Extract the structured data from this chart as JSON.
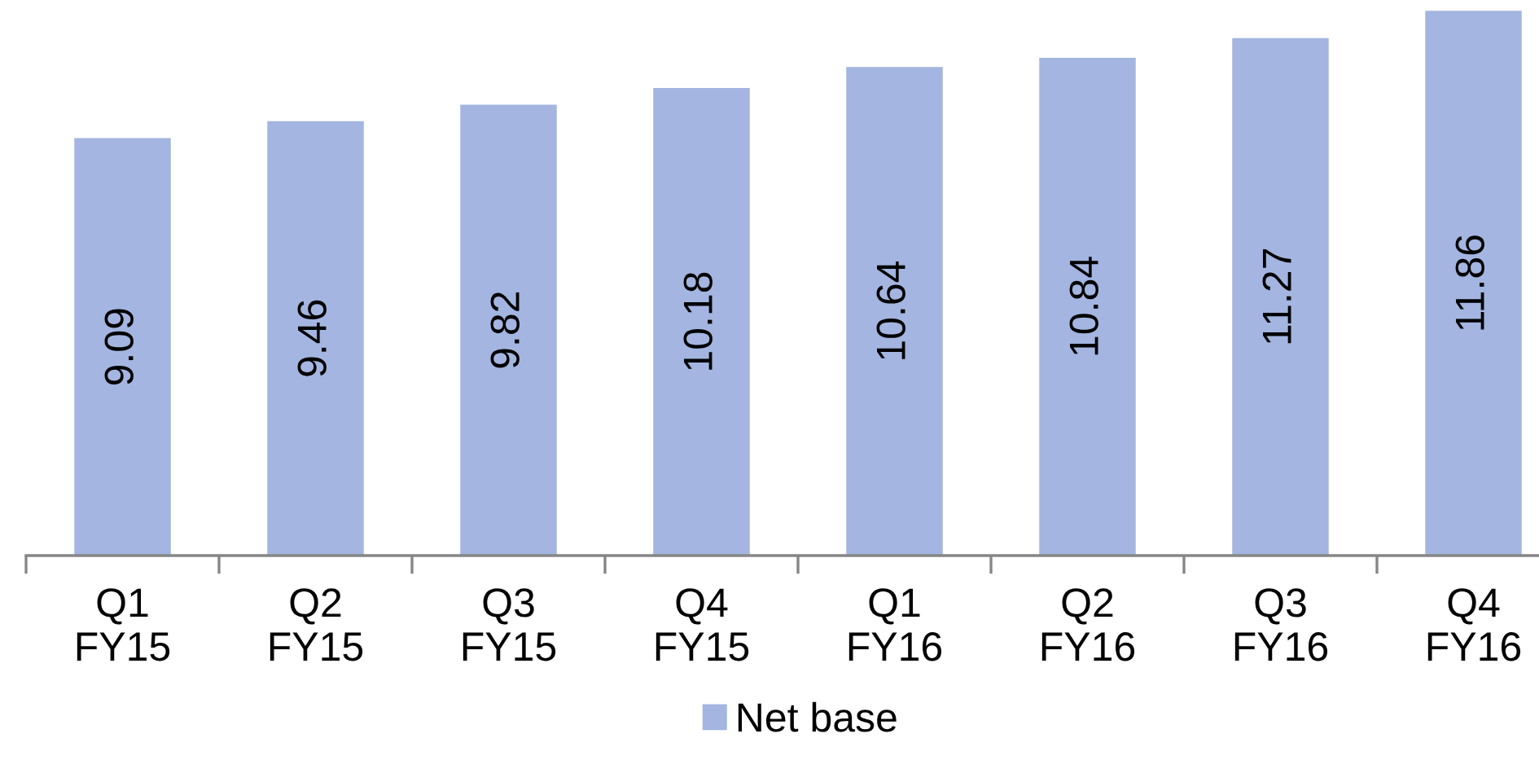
{
  "chart_data": {
    "type": "bar",
    "categories": [
      "Q1\nFY15",
      "Q2\nFY15",
      "Q3\nFY15",
      "Q4\nFY15",
      "Q1\nFY16",
      "Q2\nFY16",
      "Q3\nFY16",
      "Q4\nFY16"
    ],
    "series": [
      {
        "name": "Net base",
        "color": "#a3b5e0",
        "values": [
          9.09,
          9.46,
          9.82,
          10.18,
          10.64,
          10.84,
          11.27,
          11.86
        ]
      }
    ],
    "data_labels": true,
    "legend": "bottom"
  }
}
